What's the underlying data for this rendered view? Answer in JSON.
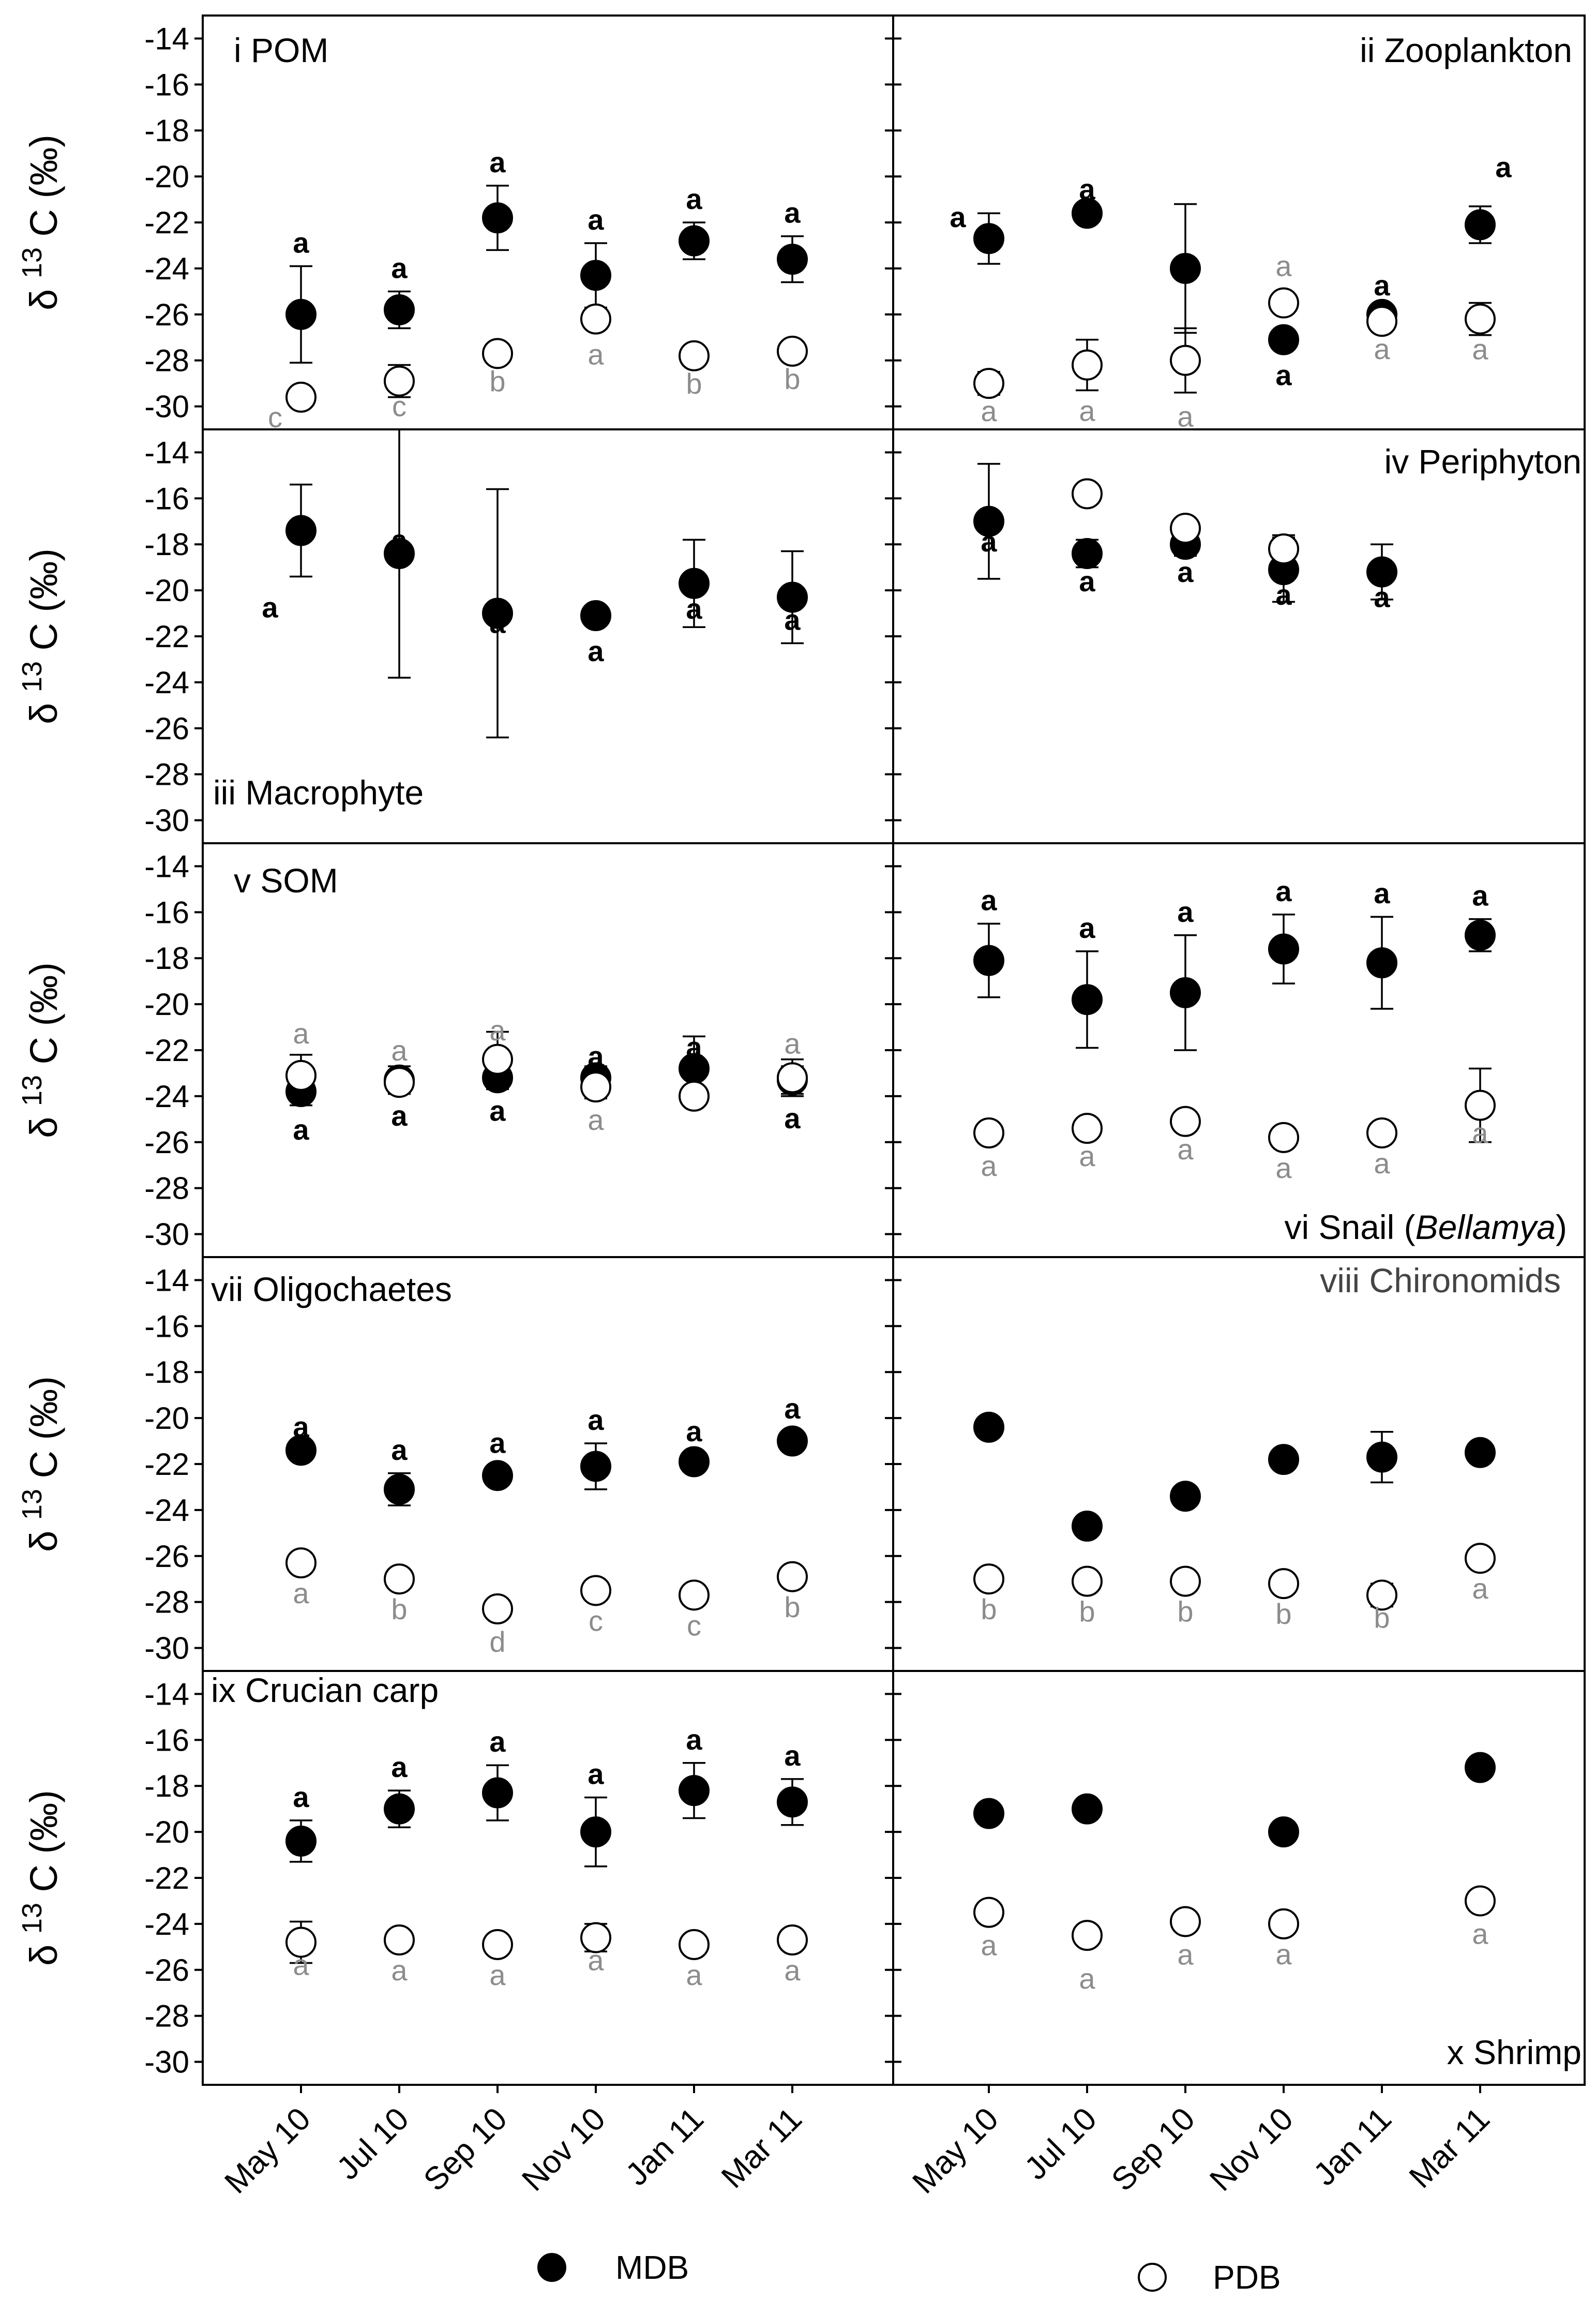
{
  "figure": {
    "y_axis_label": {
      "delta": "δ",
      "superscript": "13",
      "element": "C",
      "unit": "(‰)"
    },
    "x_categories": [
      "May 10",
      "Jul 10",
      "Sep 10",
      "Nov 10",
      "Jan 11",
      "Mar 11"
    ],
    "legend": [
      {
        "name": "MDB",
        "marker": "filled-circle",
        "color": "#000000"
      },
      {
        "name": "PDB",
        "marker": "open-circle",
        "color": "#000000"
      }
    ],
    "colors": {
      "bold_letter": "#000000",
      "gray_letter": "#8c8c8c",
      "axis": "#000000"
    }
  },
  "chart_data": [
    {
      "type": "scatter",
      "panel": "i",
      "title": "POM",
      "ylim": [
        -31,
        -13
      ],
      "yticks": [
        -30,
        -28,
        -26,
        -24,
        -22,
        -20,
        -18,
        -16,
        -14
      ],
      "categories": [
        "May 10",
        "Jul 10",
        "Sep 10",
        "Nov 10",
        "Jan 11",
        "Mar 11"
      ],
      "series": [
        {
          "name": "MDB",
          "values": [
            -26.0,
            -25.8,
            -21.8,
            -24.3,
            -22.8,
            -23.6
          ],
          "errors": [
            2.1,
            0.8,
            1.4,
            1.4,
            0.8,
            1.0
          ],
          "letters": [
            "a",
            "a",
            "a",
            "a",
            "a",
            "a"
          ]
        },
        {
          "name": "PDB",
          "values": [
            -29.6,
            -28.9,
            -27.7,
            -26.2,
            -27.8,
            -27.6
          ],
          "errors": [
            0,
            0.7,
            0,
            0,
            0,
            0
          ],
          "letters": [
            "c",
            "c",
            "b",
            "a",
            "b",
            "b"
          ]
        }
      ]
    },
    {
      "type": "scatter",
      "panel": "ii",
      "title": "Zooplankton",
      "ylim": [
        -31,
        -13
      ],
      "yticks": [
        -30,
        -28,
        -26,
        -24,
        -22,
        -20,
        -18,
        -16,
        -14
      ],
      "categories": [
        "May 10",
        "Jul 10",
        "Sep 10",
        "Nov 10",
        "Jan 11",
        "Mar 11"
      ],
      "series": [
        {
          "name": "MDB",
          "values": [
            -22.7,
            -21.6,
            -24.0,
            -27.1,
            -26.0,
            -22.1
          ],
          "errors": [
            1.1,
            0,
            2.8,
            0,
            0,
            0.8
          ],
          "letters": [
            "a",
            "a",
            "a",
            "a",
            "a",
            "a"
          ]
        },
        {
          "name": "PDB",
          "values": [
            -29.0,
            -28.2,
            -28.0,
            -25.5,
            -26.3,
            -26.2
          ],
          "errors": [
            0.5,
            1.1,
            1.4,
            0,
            0,
            0.7
          ],
          "letters": [
            "a",
            "a",
            "a",
            "a",
            "a",
            "a"
          ]
        }
      ]
    },
    {
      "type": "scatter",
      "panel": "iii",
      "title": "Macrophyte",
      "ylim": [
        -31,
        -13
      ],
      "yticks": [
        -30,
        -28,
        -26,
        -24,
        -22,
        -20,
        -18,
        -16,
        -14
      ],
      "categories": [
        "May 10",
        "Jul 10",
        "Sep 10",
        "Nov 10",
        "Jan 11",
        "Mar 11"
      ],
      "series": [
        {
          "name": "MDB",
          "values": [
            -17.4,
            -18.4,
            -21.0,
            -21.1,
            -19.7,
            -20.3
          ],
          "errors": [
            2.0,
            5.4,
            5.4,
            0.3,
            1.9,
            2.0
          ],
          "letters": [
            "a",
            "a",
            "a",
            "a",
            "a",
            "a"
          ]
        }
      ]
    },
    {
      "type": "scatter",
      "panel": "iv",
      "title": "Periphyton",
      "ylim": [
        -31,
        -13
      ],
      "yticks": [
        -30,
        -28,
        -26,
        -24,
        -22,
        -20,
        -18,
        -16,
        -14
      ],
      "categories": [
        "May 10",
        "Jul 10",
        "Sep 10",
        "Nov 10",
        "Jan 11",
        "Mar 11"
      ],
      "series": [
        {
          "name": "MDB",
          "values": [
            -17.0,
            -18.4,
            -18.0,
            -19.1,
            -19.2,
            null
          ],
          "errors": [
            2.5,
            0.6,
            0.5,
            1.4,
            1.2,
            0
          ],
          "letters": [
            "a",
            "a",
            "a",
            "a",
            "a",
            ""
          ]
        },
        {
          "name": "PDB",
          "values": [
            null,
            -15.8,
            -17.3,
            -18.2,
            null,
            null
          ],
          "errors": [
            0,
            0,
            0,
            0.6,
            0,
            0
          ],
          "letters": [
            "",
            "",
            "",
            "",
            "",
            ""
          ]
        }
      ]
    },
    {
      "type": "scatter",
      "panel": "v",
      "title": "SOM",
      "ylim": [
        -31,
        -13
      ],
      "yticks": [
        -30,
        -28,
        -26,
        -24,
        -22,
        -20,
        -18,
        -16,
        -14
      ],
      "categories": [
        "May 10",
        "Jul 10",
        "Sep 10",
        "Nov 10",
        "Jan 11",
        "Mar 11"
      ],
      "series": [
        {
          "name": "MDB",
          "values": [
            -23.8,
            -23.3,
            -23.2,
            -23.2,
            -22.8,
            -23.3
          ],
          "errors": [
            0.6,
            0.6,
            0.5,
            0.5,
            1.4,
            0.6
          ],
          "letters": [
            "a",
            "a",
            "a",
            "a",
            "a",
            "a"
          ]
        },
        {
          "name": "PDB",
          "values": [
            -23.1,
            -23.4,
            -22.4,
            -23.6,
            -24.0,
            -23.2
          ],
          "errors": [
            0.9,
            0.5,
            1.2,
            0.5,
            0,
            0.8
          ],
          "letters": [
            "a",
            "a",
            "a",
            "a",
            "",
            "a"
          ]
        }
      ]
    },
    {
      "type": "scatter",
      "panel": "vi",
      "title": "Snail (",
      "title_italic": "Bellamya",
      "title_end": ")",
      "ylim": [
        -31,
        -13
      ],
      "yticks": [
        -30,
        -28,
        -26,
        -24,
        -22,
        -20,
        -18,
        -16,
        -14
      ],
      "categories": [
        "May 10",
        "Jul 10",
        "Sep 10",
        "Nov 10",
        "Jan 11",
        "Mar 11"
      ],
      "series": [
        {
          "name": "MDB",
          "values": [
            -18.1,
            -19.8,
            -19.5,
            -17.6,
            -18.2,
            -17.0
          ],
          "errors": [
            1.6,
            2.1,
            2.5,
            1.5,
            2.0,
            0.7
          ],
          "letters": [
            "a",
            "a",
            "a",
            "a",
            "a",
            "a"
          ]
        },
        {
          "name": "PDB",
          "values": [
            -25.6,
            -25.4,
            -25.1,
            -25.8,
            -25.6,
            -24.4
          ],
          "errors": [
            0.4,
            0,
            0.4,
            0,
            0,
            1.6
          ],
          "letters": [
            "a",
            "a",
            "a",
            "a",
            "a",
            "a"
          ]
        }
      ]
    },
    {
      "type": "scatter",
      "panel": "vii",
      "title": "Oligochaetes",
      "ylim": [
        -31,
        -13
      ],
      "yticks": [
        -30,
        -28,
        -26,
        -24,
        -22,
        -20,
        -18,
        -16,
        -14
      ],
      "categories": [
        "May 10",
        "Jul 10",
        "Sep 10",
        "Nov 10",
        "Jan 11",
        "Mar 11"
      ],
      "series": [
        {
          "name": "MDB",
          "values": [
            -21.4,
            -23.1,
            -22.5,
            -22.1,
            -21.9,
            -21.0
          ],
          "errors": [
            0,
            0.7,
            0.4,
            1.0,
            0.3,
            0.4
          ],
          "letters": [
            "a",
            "a",
            "a",
            "a",
            "a",
            "a"
          ]
        },
        {
          "name": "PDB",
          "values": [
            -26.3,
            -27.0,
            -28.3,
            -27.5,
            -27.7,
            -26.9
          ],
          "errors": [
            0,
            0,
            0,
            0,
            0,
            0
          ],
          "letters": [
            "a",
            "b",
            "d",
            "c",
            "c",
            "b"
          ]
        }
      ]
    },
    {
      "type": "scatter",
      "panel": "viii",
      "title": "Chironomids",
      "ylim": [
        -31,
        -13
      ],
      "yticks": [
        -30,
        -28,
        -26,
        -24,
        -22,
        -20,
        -18,
        -16,
        -14
      ],
      "categories": [
        "May 10",
        "Jul 10",
        "Sep 10",
        "Nov 10",
        "Jan 11",
        "Mar 11"
      ],
      "series": [
        {
          "name": "MDB",
          "values": [
            -20.4,
            -24.7,
            -23.4,
            -21.8,
            -21.7,
            -21.5
          ],
          "errors": [
            0,
            0,
            0,
            0.3,
            1.1,
            0.4
          ],
          "letters": [
            "",
            "",
            "",
            "",
            "",
            ""
          ]
        },
        {
          "name": "PDB",
          "values": [
            -27.0,
            -27.1,
            -27.1,
            -27.2,
            -27.7,
            -26.1
          ],
          "errors": [
            0,
            0,
            0,
            0,
            0.5,
            0
          ],
          "letters": [
            "b",
            "b",
            "b",
            "b",
            "b",
            "a"
          ]
        }
      ]
    },
    {
      "type": "scatter",
      "panel": "ix",
      "title": "Crucian carp",
      "ylim": [
        -31,
        -13
      ],
      "yticks": [
        -30,
        -28,
        -26,
        -24,
        -22,
        -20,
        -18,
        -16,
        -14
      ],
      "categories": [
        "May 10",
        "Jul 10",
        "Sep 10",
        "Nov 10",
        "Jan 11",
        "Mar 11"
      ],
      "series": [
        {
          "name": "MDB",
          "values": [
            -20.4,
            -19.0,
            -18.3,
            -20.0,
            -18.2,
            -18.7
          ],
          "errors": [
            0.9,
            0.8,
            1.2,
            1.5,
            1.2,
            1.0
          ],
          "letters": [
            "a",
            "a",
            "a",
            "a",
            "a",
            "a"
          ]
        },
        {
          "name": "PDB",
          "values": [
            -24.8,
            -24.7,
            -24.9,
            -24.6,
            -24.9,
            -24.7
          ],
          "errors": [
            0.9,
            0,
            0,
            0.6,
            0,
            0
          ],
          "letters": [
            "a",
            "a",
            "a",
            "a",
            "a",
            "a"
          ]
        }
      ]
    },
    {
      "type": "scatter",
      "panel": "x",
      "title": "Shrimp",
      "ylim": [
        -31,
        -13
      ],
      "yticks": [
        -30,
        -28,
        -26,
        -24,
        -22,
        -20,
        -18,
        -16,
        -14
      ],
      "categories": [
        "May 10",
        "Jul 10",
        "Sep 10",
        "Nov 10",
        "Jan 11",
        "Mar 11"
      ],
      "series": [
        {
          "name": "MDB",
          "values": [
            -19.2,
            -19.0,
            null,
            -20.0,
            null,
            -17.2
          ],
          "errors": [
            0,
            0,
            0,
            0,
            0,
            0
          ],
          "letters": [
            "",
            "",
            "",
            "",
            "",
            ""
          ]
        },
        {
          "name": "PDB",
          "values": [
            -23.5,
            -24.5,
            -23.9,
            -24.0,
            null,
            -23.0
          ],
          "errors": [
            0,
            0,
            0,
            0,
            0,
            0
          ],
          "letters": [
            "a",
            "a",
            "a",
            "a",
            "",
            "a"
          ]
        }
      ]
    }
  ]
}
